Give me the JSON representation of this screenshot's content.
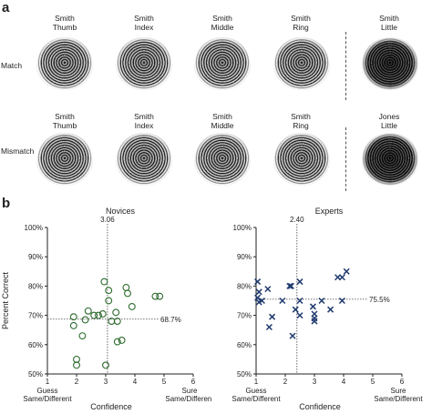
{
  "panel_a": {
    "letter": "a",
    "rows": [
      {
        "label": "Match",
        "captions": [
          [
            "Smith",
            "Thumb"
          ],
          [
            "Smith",
            "Index"
          ],
          [
            "Smith",
            "Middle"
          ],
          [
            "Smith",
            "Ring"
          ],
          [
            "Smith",
            "Little"
          ]
        ]
      },
      {
        "label": "Mismatch",
        "captions": [
          [
            "Smith",
            "Thumb"
          ],
          [
            "Smith",
            "Index"
          ],
          [
            "Smith",
            "Middle"
          ],
          [
            "Smith",
            "Ring"
          ],
          [
            "Jones",
            "Little"
          ]
        ]
      }
    ]
  },
  "panel_b": {
    "letter": "b"
  },
  "chart_data": [
    {
      "type": "scatter",
      "title": "Novices",
      "xlabel": "Confidence",
      "ylabel": "Percent Correct",
      "xlim": [
        1,
        6
      ],
      "ylim": [
        50,
        100
      ],
      "xticks": [
        "1",
        "2",
        "3",
        "4",
        "5",
        "6"
      ],
      "yticks": [
        "50%",
        "60%",
        "70%",
        "80%",
        "90%",
        "100%"
      ],
      "x_end_labels": {
        "left": [
          "Guess",
          "Same/Different"
        ],
        "right": [
          "Sure",
          "Same/Different"
        ]
      },
      "ref_x": 3.06,
      "ref_x_label": "3.06",
      "ref_y": 68.7,
      "ref_y_label": "68.7%",
      "marker": "circle",
      "color": "#2e6b2e",
      "points": [
        [
          1.9,
          69.5
        ],
        [
          1.9,
          66.5
        ],
        [
          2.2,
          63
        ],
        [
          2.3,
          68.5
        ],
        [
          2.4,
          71.5
        ],
        [
          2.6,
          70
        ],
        [
          2.75,
          70
        ],
        [
          2.9,
          70.5
        ],
        [
          2.95,
          81.5
        ],
        [
          3.1,
          78.5
        ],
        [
          3.1,
          75
        ],
        [
          3.2,
          68
        ],
        [
          3.35,
          71
        ],
        [
          3.4,
          68
        ],
        [
          3.4,
          61
        ],
        [
          3.55,
          61.5
        ],
        [
          3.7,
          79.5
        ],
        [
          3.75,
          77.5
        ],
        [
          3.9,
          73
        ],
        [
          4.7,
          76.5
        ],
        [
          4.85,
          76.5
        ],
        [
          2.0,
          55
        ],
        [
          2.0,
          53
        ],
        [
          3.0,
          53
        ]
      ]
    },
    {
      "type": "scatter",
      "title": "Experts",
      "xlabel": "Confidence",
      "ylabel": "",
      "xlim": [
        1,
        6
      ],
      "ylim": [
        50,
        100
      ],
      "xticks": [
        "1",
        "2",
        "3",
        "4",
        "5",
        "6"
      ],
      "yticks": [
        "50%",
        "60%",
        "70%",
        "80%",
        "90%",
        "100%"
      ],
      "x_end_labels": {
        "left": [
          "Guess",
          "Same/Different"
        ],
        "right": [
          "Sure",
          "Same/Different"
        ]
      },
      "ref_x": 2.4,
      "ref_x_label": "2.40",
      "ref_y": 75.5,
      "ref_y_label": "75.5%",
      "marker": "x",
      "color": "#1f3a6e",
      "points": [
        [
          1.05,
          81.5
        ],
        [
          1.1,
          78
        ],
        [
          1.05,
          76
        ],
        [
          1.2,
          75
        ],
        [
          1.1,
          74.5
        ],
        [
          1.4,
          79
        ],
        [
          1.55,
          69.5
        ],
        [
          1.45,
          66
        ],
        [
          1.9,
          75
        ],
        [
          2.15,
          80
        ],
        [
          2.2,
          80
        ],
        [
          2.35,
          72
        ],
        [
          2.5,
          81.5
        ],
        [
          2.5,
          75
        ],
        [
          2.5,
          70
        ],
        [
          2.25,
          63
        ],
        [
          2.95,
          73
        ],
        [
          3.0,
          70.5
        ],
        [
          3.0,
          68
        ],
        [
          3.25,
          75
        ],
        [
          3.55,
          72
        ],
        [
          3.8,
          83
        ],
        [
          3.95,
          83
        ],
        [
          3.95,
          75
        ],
        [
          4.1,
          85
        ],
        [
          3.0,
          69
        ]
      ]
    }
  ]
}
